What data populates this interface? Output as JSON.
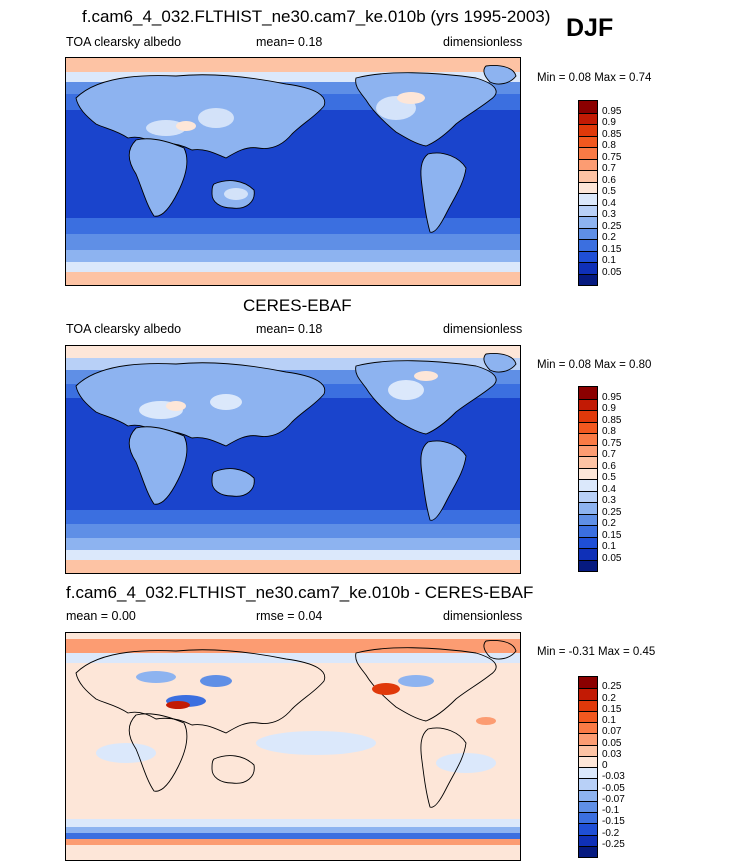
{
  "season": "DJF",
  "panels": [
    {
      "title": "f.cam6_4_032.FLTHIST_ne30.cam7_ke.010b (yrs 1995-2003)",
      "left_label": "TOA clearsky albedo",
      "center_label": "mean=   0.18",
      "right_label": "dimensionless",
      "minmax": "Min =   0.08 Max =   0.74",
      "colorbar": {
        "labels": [
          "0.95",
          "0.9",
          "0.85",
          "0.8",
          "0.75",
          "0.7",
          "0.6",
          "0.5",
          "0.4",
          "0.3",
          "0.25",
          "0.2",
          "0.15",
          "0.1",
          "0.05"
        ],
        "colors": [
          "#8b0000",
          "#c21a04",
          "#e0390a",
          "#f2581f",
          "#fa7a45",
          "#fc9c72",
          "#fdc3a4",
          "#fde6d8",
          "#dbe8fb",
          "#b8d0f7",
          "#8db3f0",
          "#5f8fe6",
          "#3b6fe0",
          "#1f4fd6",
          "#0f30b8",
          "#061a80"
        ]
      }
    },
    {
      "title": "CERES-EBAF",
      "left_label": "TOA clearsky albedo",
      "center_label": "mean=   0.18",
      "right_label": "dimensionless",
      "minmax": "Min =   0.08 Max =   0.80",
      "colorbar": {
        "labels": [
          "0.95",
          "0.9",
          "0.85",
          "0.8",
          "0.75",
          "0.7",
          "0.6",
          "0.5",
          "0.4",
          "0.3",
          "0.25",
          "0.2",
          "0.15",
          "0.1",
          "0.05"
        ],
        "colors": [
          "#8b0000",
          "#c21a04",
          "#e0390a",
          "#f2581f",
          "#fa7a45",
          "#fc9c72",
          "#fdc3a4",
          "#fde6d8",
          "#dbe8fb",
          "#b8d0f7",
          "#8db3f0",
          "#5f8fe6",
          "#3b6fe0",
          "#1f4fd6",
          "#0f30b8",
          "#061a80"
        ]
      }
    },
    {
      "title": "f.cam6_4_032.FLTHIST_ne30.cam7_ke.010b - CERES-EBAF",
      "left_label": "mean =    0.00",
      "center_label": "rmse =   0.04",
      "right_label": "dimensionless",
      "minmax": "Min =  -0.31 Max =   0.45",
      "colorbar": {
        "labels": [
          "0.25",
          "0.2",
          "0.15",
          "0.1",
          "0.07",
          "0.05",
          "0.03",
          "0",
          "-0.03",
          "-0.05",
          "-0.07",
          "-0.1",
          "-0.15",
          "-0.2",
          "-0.25"
        ],
        "colors": [
          "#8b0000",
          "#c21a04",
          "#e0390a",
          "#f2581f",
          "#fa7a45",
          "#fc9c72",
          "#fdc3a4",
          "#fde6d8",
          "#dbe8fb",
          "#b8d0f7",
          "#8db3f0",
          "#5f8fe6",
          "#3b6fe0",
          "#1f4fd6",
          "#0f30b8",
          "#061a80"
        ]
      }
    }
  ]
}
